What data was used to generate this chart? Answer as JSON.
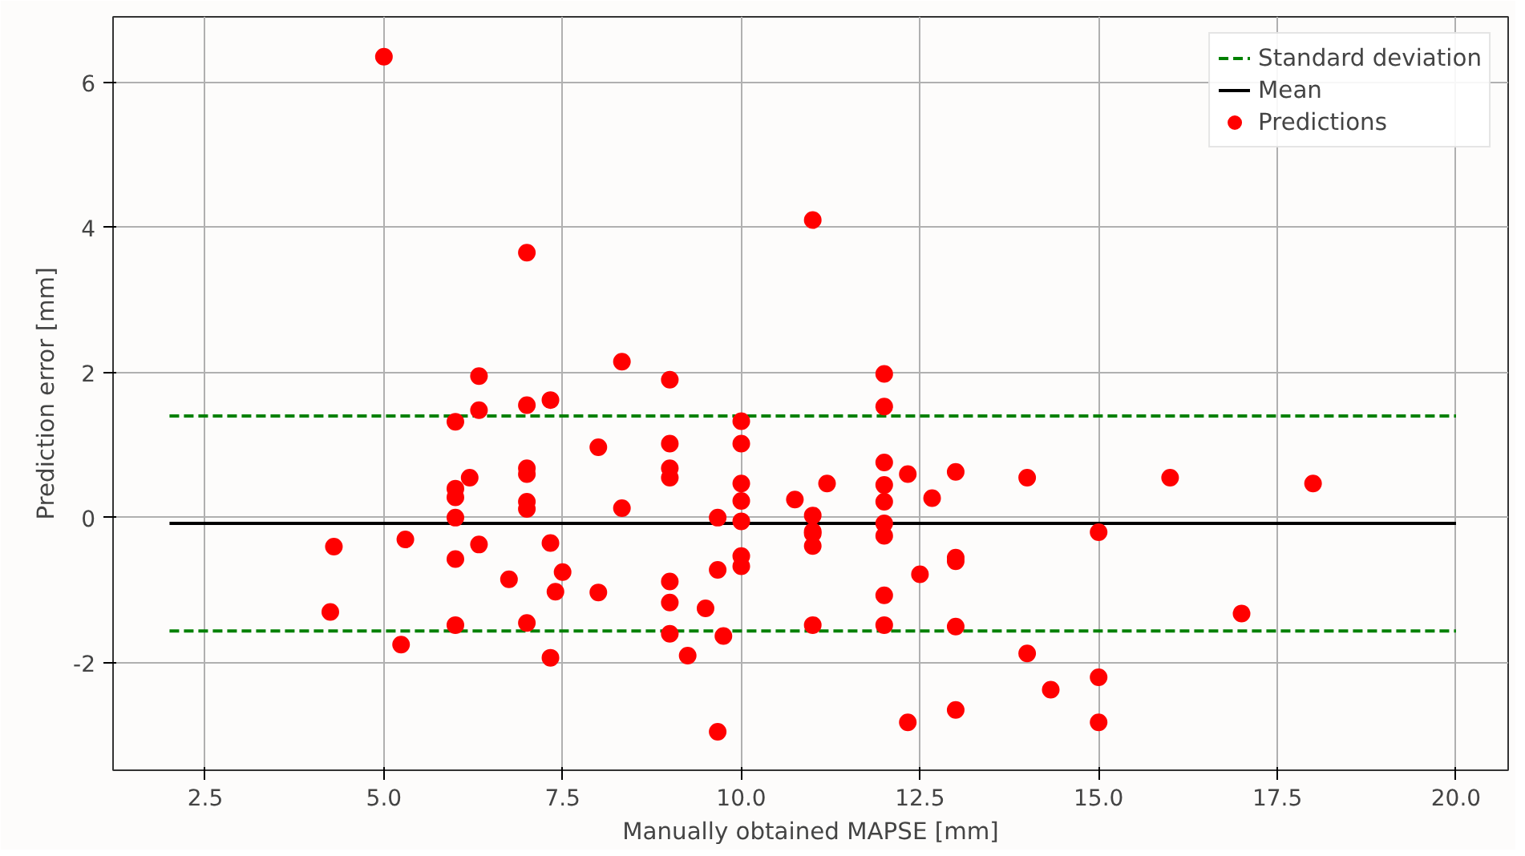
{
  "chart_data": {
    "type": "scatter",
    "xlabel": "Manually obtained MAPSE [mm]",
    "ylabel": "Prediction error [mm]",
    "xlim": [
      1.21,
      20.73
    ],
    "ylim": [
      -3.48,
      6.9
    ],
    "xticks": [
      {
        "value": 2.5,
        "label": "2.5"
      },
      {
        "value": 5,
        "label": "5.0"
      },
      {
        "value": 7.5,
        "label": "7.5"
      },
      {
        "value": 10,
        "label": "10.0"
      },
      {
        "value": 12.5,
        "label": "12.5"
      },
      {
        "value": 15,
        "label": "15.0"
      },
      {
        "value": 17.5,
        "label": "17.5"
      },
      {
        "value": 20,
        "label": "20.0"
      }
    ],
    "yticks": [
      -2,
      0,
      2,
      4,
      6
    ],
    "grid": true,
    "legend": "top right",
    "series": [
      {
        "name": "Standard deviation",
        "type": "line",
        "line_style": "dashed",
        "color": "#008000",
        "x": [
          2,
          20
        ],
        "values": [
          1.4,
          1.4
        ]
      },
      {
        "type": "line",
        "line_style": "dashed",
        "color": "#008000",
        "x": [
          2,
          20
        ],
        "values": [
          -1.56,
          -1.56
        ]
      },
      {
        "name": "Mean",
        "type": "line",
        "line_style": "solid",
        "color": "#000000",
        "x": [
          2,
          20
        ],
        "values": [
          -0.08,
          -0.08
        ]
      },
      {
        "name": "Predictions",
        "marker": "circle",
        "color": "#ff0000",
        "x": [
          4.25,
          4.3,
          5,
          5.24,
          5.3,
          6,
          6,
          6,
          6,
          6,
          6,
          6.2,
          6.33,
          6.33,
          6.33,
          6.75,
          7,
          7,
          7,
          7,
          7,
          7,
          7,
          7.33,
          7.33,
          7.33,
          7.4,
          7.5,
          8,
          8,
          8.33,
          8.33,
          9,
          9,
          9,
          9,
          9,
          9,
          9,
          9.25,
          9.5,
          9.67,
          9.67,
          9.67,
          9.75,
          10,
          10,
          10,
          10,
          10,
          10,
          10,
          10.75,
          11,
          11,
          11,
          11,
          11,
          11,
          11.2,
          12,
          12,
          12,
          12,
          12,
          12,
          12,
          12,
          12,
          12.33,
          12.33,
          12.5,
          12.67,
          13,
          13,
          13,
          13,
          13,
          14,
          14,
          14.33,
          15,
          15,
          15,
          16,
          17,
          18
        ],
        "values": [
          -1.3,
          -0.4,
          6.35,
          -1.75,
          -0.3,
          1.32,
          0.4,
          0.28,
          0.0,
          -0.57,
          -1.48,
          0.55,
          1.95,
          1.48,
          -0.37,
          -0.85,
          3.65,
          1.55,
          0.68,
          0.6,
          0.22,
          0.12,
          -1.45,
          1.62,
          -0.35,
          -1.93,
          -1.02,
          -0.75,
          0.97,
          -1.03,
          2.15,
          0.13,
          1.9,
          1.02,
          0.68,
          0.55,
          -0.88,
          -1.17,
          -1.6,
          -1.9,
          -1.25,
          0.0,
          -0.72,
          -2.95,
          -1.63,
          1.33,
          1.02,
          0.47,
          0.23,
          -0.05,
          -0.53,
          -0.67,
          0.25,
          4.1,
          0.03,
          -0.19,
          -0.22,
          -0.39,
          -1.48,
          0.47,
          1.98,
          1.53,
          0.76,
          0.45,
          0.22,
          -0.08,
          -0.25,
          -1.07,
          -1.48,
          0.6,
          -2.82,
          -0.78,
          0.27,
          0.63,
          -0.55,
          -0.6,
          -1.5,
          -2.65,
          0.55,
          -1.87,
          -2.37,
          -0.2,
          -2.2,
          -2.82,
          0.55,
          -1.32,
          0.47
        ]
      }
    ]
  }
}
